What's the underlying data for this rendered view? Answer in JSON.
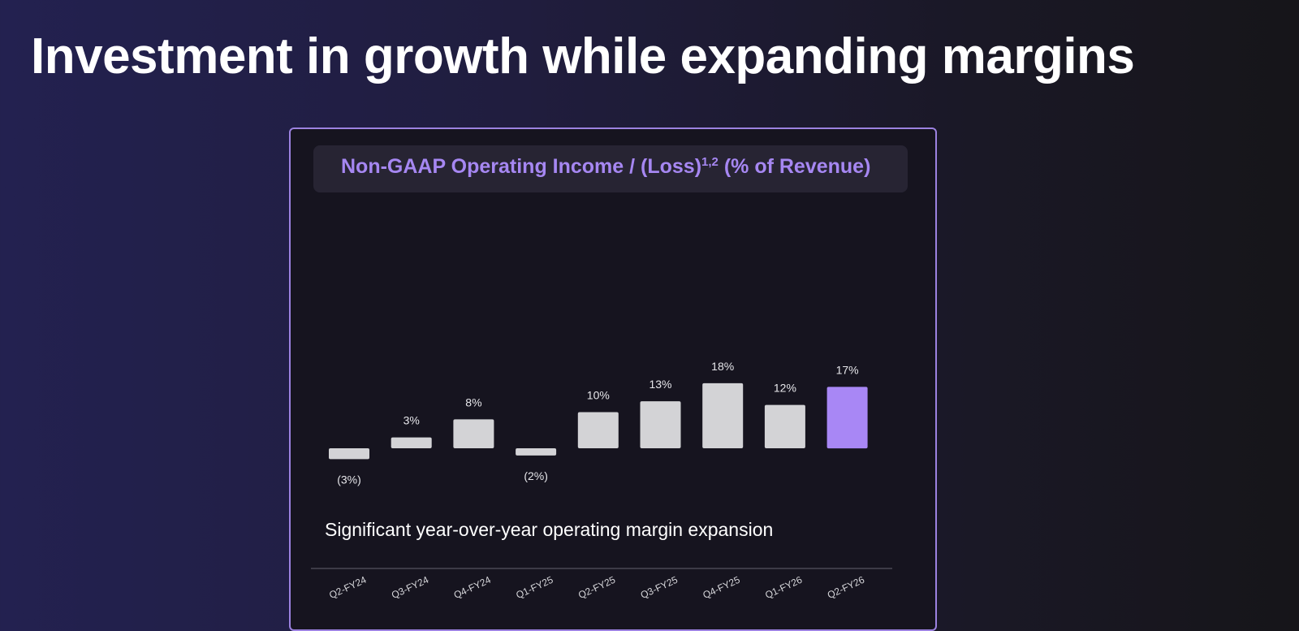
{
  "page": {
    "title": "Investment in growth while expanding margins",
    "colors": {
      "accent": "#a687f2",
      "bar": "#d3d3d6",
      "highlight_bar": "#a887f5",
      "card_border": "#9c82e0"
    }
  },
  "card": {
    "header": {
      "text": "Non-GAAP Operating Income / (Loss)",
      "superscript": "1,2",
      "suffix": " (% of Revenue)"
    },
    "subtitle": "Significant year-over-year operating margin expansion"
  },
  "chart_data": {
    "type": "bar",
    "categories": [
      "Q2-FY24",
      "Q3-FY24",
      "Q4-FY24",
      "Q1-FY25",
      "Q2-FY25",
      "Q3-FY25",
      "Q4-FY25",
      "Q1-FY26",
      "Q2-FY26"
    ],
    "values": [
      -3,
      3,
      8,
      -2,
      10,
      13,
      18,
      12,
      17
    ],
    "data_labels": [
      "(3%)",
      "3%",
      "8%",
      "(2%)",
      "10%",
      "13%",
      "18%",
      "12%",
      "17%"
    ],
    "highlight_index": 8,
    "unit": "%",
    "xlabel": "",
    "ylabel": "",
    "grid": false,
    "legend": "none"
  }
}
